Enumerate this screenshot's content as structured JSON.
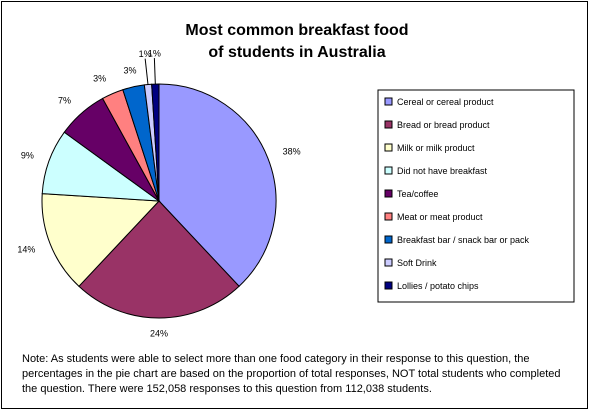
{
  "chart_data": {
    "type": "pie",
    "title": "Most common breakfast food of students in Australia",
    "title_lines": [
      "Most common breakfast food",
      "of students in Australia"
    ],
    "slices": [
      {
        "label": "Cereal or cereal product",
        "value": 38,
        "display": "38%",
        "color": "#9999FF"
      },
      {
        "label": "Bread or bread product",
        "value": 24,
        "display": "24%",
        "color": "#993366"
      },
      {
        "label": "Milk or milk product",
        "value": 14,
        "display": "14%",
        "color": "#FFFFCC"
      },
      {
        "label": "Did not have breakfast",
        "value": 9,
        "display": "9%",
        "color": "#CCFFFF"
      },
      {
        "label": "Tea/coffee",
        "value": 7,
        "display": "7%",
        "color": "#660066"
      },
      {
        "label": "Meat or meat product",
        "value": 3,
        "display": "3%",
        "color": "#FF8080"
      },
      {
        "label": "Breakfast bar / snack bar or pack",
        "value": 3,
        "display": "3%",
        "color": "#0066CC"
      },
      {
        "label": "Soft Drink",
        "value": 1,
        "display": "1%",
        "color": "#CCCCFF"
      },
      {
        "label": "Lollies / potato chips",
        "value": 1,
        "display": "1%",
        "color": "#000080"
      }
    ],
    "legend_position": "right",
    "start": "12 o'clock",
    "direction": "clockwise"
  },
  "note": "Note: As students were able to select more than one food category in their response to this question, the percentages in the pie chart are based on the proportion of total responses, NOT total students who completed the question. There were 152,058 responses to this question from 112,038 students."
}
